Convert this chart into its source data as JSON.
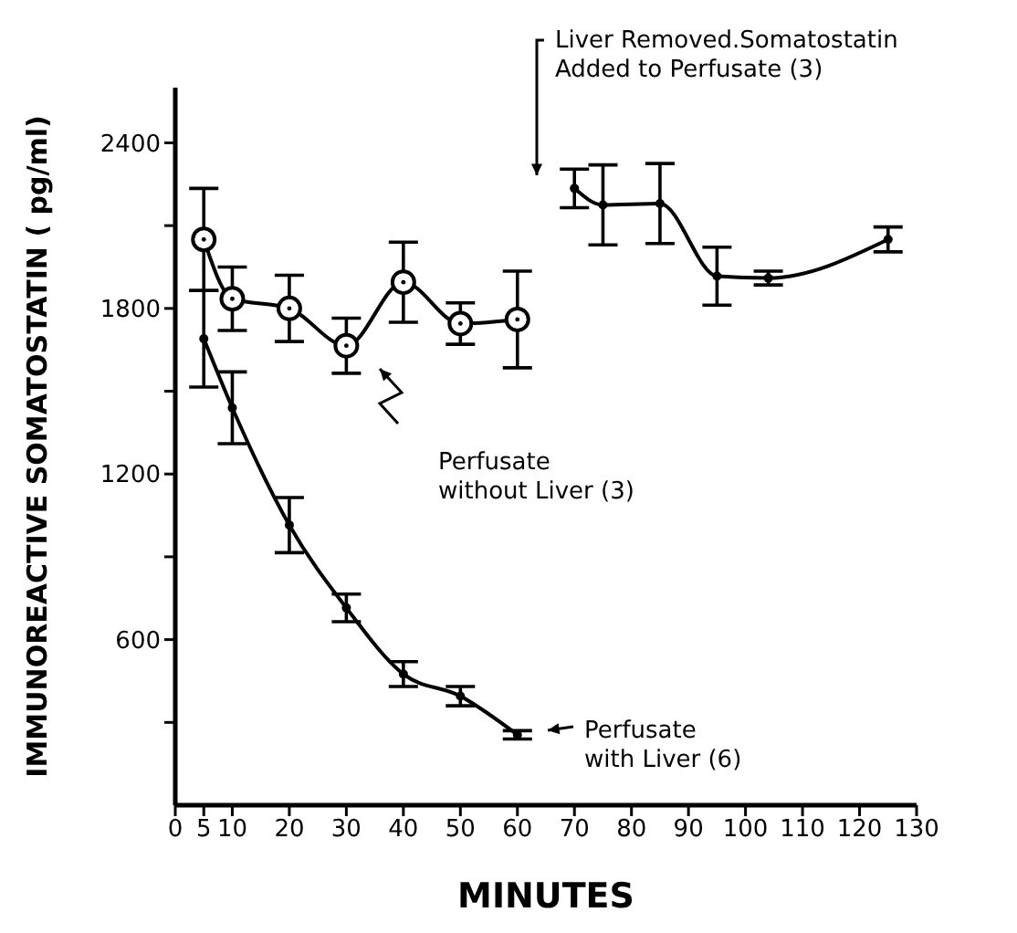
{
  "chart_data": {
    "type": "line",
    "xlabel": "MINUTES",
    "ylabel": "IMMUNOREACTIVE SOMATOSTATIN ( pg/ml)",
    "xlim": [
      0,
      130
    ],
    "xticks": [
      0,
      5,
      10,
      20,
      30,
      40,
      50,
      60,
      70,
      80,
      90,
      100,
      110,
      120,
      130
    ],
    "ylim": [
      0,
      2600
    ],
    "yticks": [
      {
        "value": 300,
        "label": null
      },
      600,
      {
        "value": 900,
        "label": null
      },
      1200,
      {
        "value": 1500,
        "label": null
      },
      1800,
      {
        "value": 2100,
        "label": null
      },
      2400
    ],
    "marker": "circle",
    "line_style": "solid",
    "grid": false,
    "legend": false,
    "annotations": [
      "Perfusate\nwithout Liver (3)",
      "Perfusate\nwith Liver (6)",
      "Liver Removed.Somatostatin\nAdded to Perfusate (3)"
    ],
    "series": [
      {
        "color": "#000000",
        "x": [
          5,
          10,
          20,
          30,
          40,
          50,
          60
        ],
        "values": [
          2050,
          1835,
          1800,
          1665,
          1895,
          1745,
          1760
        ],
        "errors": [
          185,
          115,
          120,
          100,
          145,
          75,
          175
        ]
      },
      {
        "color": "#000000",
        "x": [
          5,
          10,
          20,
          30,
          40,
          50,
          60
        ],
        "values": [
          1690,
          1440,
          1015,
          715,
          475,
          395,
          255
        ],
        "errors": [
          175,
          130,
          100,
          50,
          45,
          35,
          15
        ]
      },
      {
        "color": "#000000",
        "x": [
          70,
          75,
          85,
          95,
          104,
          125
        ],
        "values": [
          2235,
          2175,
          2180,
          1917,
          1910,
          2050
        ],
        "errors": [
          70,
          145,
          145,
          105,
          25,
          45
        ]
      }
    ]
  }
}
